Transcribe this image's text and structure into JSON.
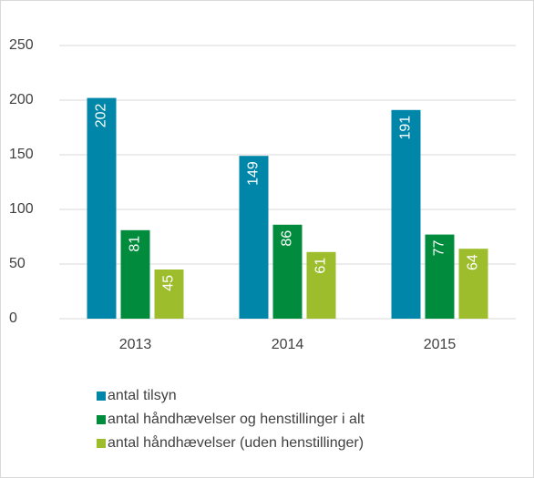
{
  "chart_data": {
    "type": "bar",
    "categories": [
      "2013",
      "2014",
      "2015"
    ],
    "series": [
      {
        "name": "antal tilsyn",
        "color": "#0086a9",
        "values": [
          202,
          149,
          191
        ]
      },
      {
        "name": "antal håndhævelser og henstillinger i alt",
        "color": "#008c3c",
        "values": [
          81,
          86,
          77
        ]
      },
      {
        "name": "antal håndhævelser (uden henstillinger)",
        "color": "#9dbd2c",
        "values": [
          45,
          61,
          64
        ]
      }
    ],
    "ylim": [
      0,
      250
    ],
    "yticks": [
      0,
      50,
      100,
      150,
      200,
      250
    ],
    "grid": true,
    "legend": "bottom"
  }
}
